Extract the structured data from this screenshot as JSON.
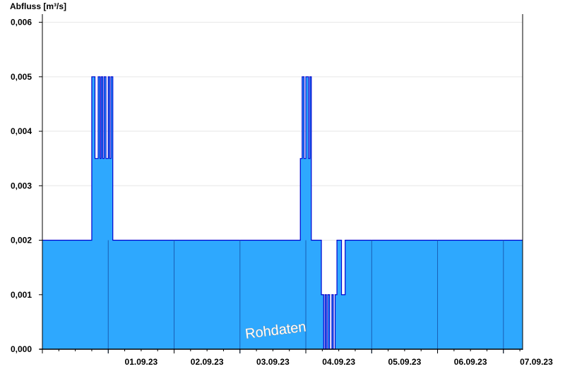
{
  "chart_data": {
    "type": "area",
    "ylabel": "Abfluss [m³/s]",
    "xlabel": "",
    "ylim": [
      0,
      0.00615
    ],
    "xlim": [
      "31.08.23 00:00",
      "07.09.23 07:00"
    ],
    "y_ticks": [
      "0,000",
      "0,001",
      "0,002",
      "0,003",
      "0,004",
      "0,005",
      "0,006"
    ],
    "x_ticks": [
      "01.09.23",
      "02.09.23",
      "03.09.23",
      "04.09.23",
      "05.09.23",
      "06.09.23",
      "07.09.23"
    ],
    "grid": true,
    "watermark": "Rohdaten",
    "colors": {
      "fill": "#2ea8fe",
      "line": "#0000d0",
      "day_line": "#1a5fb4",
      "grid": "#e6e6e6"
    },
    "series": [
      {
        "x": [
          "31.08.23 00:00",
          "31.08.23 18:00",
          "31.08.23 18:00",
          "31.08.23 19:10",
          "31.08.23 19:10",
          "31.08.23 20:20",
          "31.08.23 20:20",
          "31.08.23 21:00",
          "31.08.23 21:00",
          "31.08.23 21:25",
          "31.08.23 21:25",
          "31.08.23 22:00",
          "31.08.23 22:00",
          "31.08.23 22:30",
          "31.08.23 22:30",
          "31.08.23 23:10",
          "31.08.23 23:10",
          "01.09.23 00:00",
          "01.09.23 00:00",
          "01.09.23 00:30",
          "01.09.23 00:30",
          "01.09.23 01:00",
          "01.09.23 01:00",
          "01.09.23 01:40",
          "01.09.23 01:40",
          "03.09.23 22:00",
          "03.09.23 22:00",
          "03.09.23 22:40",
          "03.09.23 22:40",
          "03.09.23 23:20",
          "03.09.23 23:20",
          "04.09.23 00:00",
          "04.09.23 00:00",
          "04.09.23 01:00",
          "04.09.23 01:00",
          "04.09.23 01:30",
          "04.09.23 01:30",
          "04.09.23 02:00",
          "04.09.23 02:00",
          "04.09.23 05:40",
          "04.09.23 05:40",
          "04.09.23 06:30",
          "04.09.23 06:30",
          "04.09.23 07:00",
          "04.09.23 07:00",
          "04.09.23 07:30",
          "04.09.23 07:30",
          "04.09.23 08:00",
          "04.09.23 08:00",
          "04.09.23 08:40",
          "04.09.23 08:40",
          "04.09.23 09:30",
          "04.09.23 09:30",
          "04.09.23 10:00",
          "04.09.23 10:00",
          "04.09.23 10:40",
          "04.09.23 10:40",
          "04.09.23 11:20",
          "04.09.23 11:20",
          "04.09.23 13:00",
          "04.09.23 13:00",
          "04.09.23 14:20",
          "04.09.23 14:20",
          "07.09.23 07:00"
        ],
        "y": [
          0.002,
          0.002,
          0.005,
          0.005,
          0.0035,
          0.0035,
          0.005,
          0.005,
          0.0035,
          0.0035,
          0.005,
          0.005,
          0.0035,
          0.0035,
          0.005,
          0.005,
          0.0035,
          0.0035,
          0.005,
          0.005,
          0.0035,
          0.0035,
          0.005,
          0.005,
          0.002,
          0.002,
          0.0035,
          0.0035,
          0.005,
          0.005,
          0.0035,
          0.0035,
          0.005,
          0.005,
          0.0035,
          0.0035,
          0.005,
          0.005,
          0.002,
          0.002,
          0.001,
          0.001,
          0,
          0,
          0.001,
          0.001,
          0,
          0,
          0.001,
          0.001,
          0,
          0,
          0.001,
          0.001,
          0,
          0,
          0.001,
          0.001,
          0.002,
          0.002,
          0.001,
          0.001,
          0.002,
          0.002
        ]
      }
    ]
  }
}
